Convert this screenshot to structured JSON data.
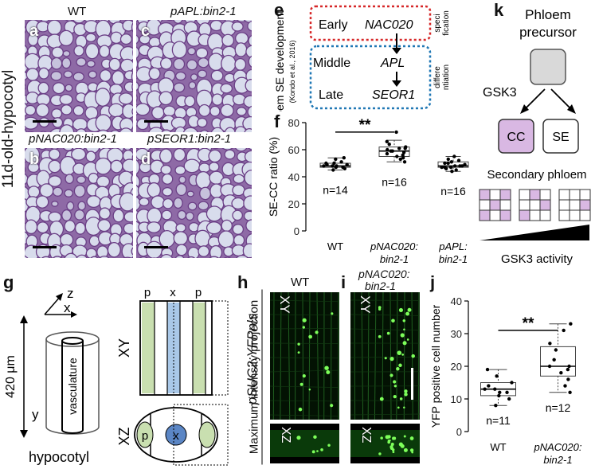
{
  "figure": {
    "side_label": "11d-old-hypocotyl",
    "panel_a": {
      "letter": "a",
      "title": "WT"
    },
    "panel_b": {
      "letter": "b",
      "title": "pNAC020:bin2-1"
    },
    "panel_c": {
      "letter": "c",
      "title": "pAPL:bin2-1"
    },
    "panel_d": {
      "letter": "d",
      "title": "pSEOR1:bin2-1"
    },
    "panel_e": {
      "letter": "e",
      "vertical_label": "Phloem SE development",
      "citation": "(Kondo et al., 2016)",
      "early": "Early",
      "nac": "NAC020",
      "spec1": "speci",
      "spec2": "fication",
      "middle": "Middle",
      "late": "Late",
      "apl": "APL",
      "seor": "SEOR1",
      "diff1": "differe",
      "diff2": "ntiation",
      "red_box_color": "#d62728",
      "blue_box_color": "#1f77b4"
    },
    "panel_f": {
      "letter": "f",
      "chart_data": {
        "type": "box",
        "ylabel": "SE-CC ratio (%)",
        "ylim": [
          0,
          80
        ],
        "yticks": [
          0,
          20,
          40,
          60,
          80
        ],
        "categories": [
          "WT",
          "pNAC020: bin2-1",
          "pAPL: bin2-1"
        ],
        "cat_line1": [
          "WT",
          "pNAC020:",
          "pAPL:"
        ],
        "cat_line2": [
          "",
          "bin2-1",
          "bin2-1"
        ],
        "n_labels": [
          "n=14",
          "n=16",
          "n=16"
        ],
        "box": [
          {
            "min": 45,
            "q1": 47,
            "median": 48,
            "q3": 50,
            "max": 54
          },
          {
            "min": 51,
            "q1": 55,
            "median": 59,
            "q3": 62,
            "max": 67
          },
          {
            "min": 44,
            "q1": 47,
            "median": 48,
            "q3": 51,
            "max": 55
          }
        ],
        "points": [
          [
            45,
            46,
            47,
            47,
            48,
            48,
            48,
            49,
            49,
            50,
            50,
            51,
            53,
            54
          ],
          [
            51,
            53,
            54,
            55,
            56,
            57,
            58,
            59,
            59,
            60,
            61,
            61,
            62,
            64,
            66,
            73
          ],
          [
            44,
            45,
            46,
            47,
            47,
            47,
            48,
            48,
            48,
            49,
            50,
            50,
            51,
            52,
            53,
            55
          ]
        ],
        "sig_label": "**",
        "sig_pair": [
          0,
          1
        ],
        "sig_y": 73
      }
    },
    "panel_g": {
      "letter": "g",
      "axis_z": "z",
      "axis_x": "x",
      "axis_y": "y",
      "length": "420 μm",
      "vasculature": "vasculature",
      "hypocotyl": "hypocotyl",
      "xy": "XY",
      "xz": "XZ",
      "p1": "p",
      "xmid": "x",
      "p2": "p",
      "xz_p": "p",
      "xz_x": "x",
      "phloem_color": "#c9dfb0",
      "xylem_color": "#a9c8e8"
    },
    "panel_h": {
      "letter": "h",
      "title": "WT",
      "projection_label": "Maximum intensity projection",
      "reporter": "pSUC2:YFPnls",
      "xy": "XY",
      "xz": "XZ"
    },
    "panel_i": {
      "letter": "i",
      "title1": "pNAC020:",
      "title2": "bin2-1",
      "xy": "XY",
      "xz": "XZ"
    },
    "panel_j": {
      "letter": "j",
      "chart_data": {
        "type": "box",
        "ylabel": "YFP positive cell number",
        "ylim": [
          0,
          40
        ],
        "yticks": [
          0,
          10,
          20,
          30,
          40
        ],
        "categories": [
          "WT",
          "pNAC020: bin2-1"
        ],
        "cat_line1": [
          "WT",
          "pNAC020:"
        ],
        "cat_line2": [
          "",
          "bin2-1"
        ],
        "n_labels": [
          "n=11",
          "n=12"
        ],
        "box": [
          {
            "min": 8,
            "q1": 11,
            "median": 13,
            "q3": 15,
            "max": 19
          },
          {
            "min": 12,
            "q1": 17,
            "median": 20,
            "q3": 26,
            "max": 33
          }
        ],
        "points": [
          [
            8,
            10,
            11,
            12,
            12,
            13,
            13,
            14,
            15,
            17,
            19
          ],
          [
            12,
            14,
            16,
            18,
            19,
            20,
            20,
            22,
            25,
            27,
            31,
            33
          ]
        ],
        "sig_label": "**",
        "sig_pair": [
          0,
          1
        ],
        "sig_y": 31
      }
    },
    "panel_k": {
      "letter": "k",
      "precursor1": "Phloem",
      "precursor2": "precursor",
      "gsk": "GSK3",
      "cc": "CC",
      "se": "SE",
      "secondary": "Secondary phloem",
      "activity": "GSK3 activity",
      "cc_color": "#d9b8e3",
      "precursor_color": "#d9d9d9"
    }
  }
}
